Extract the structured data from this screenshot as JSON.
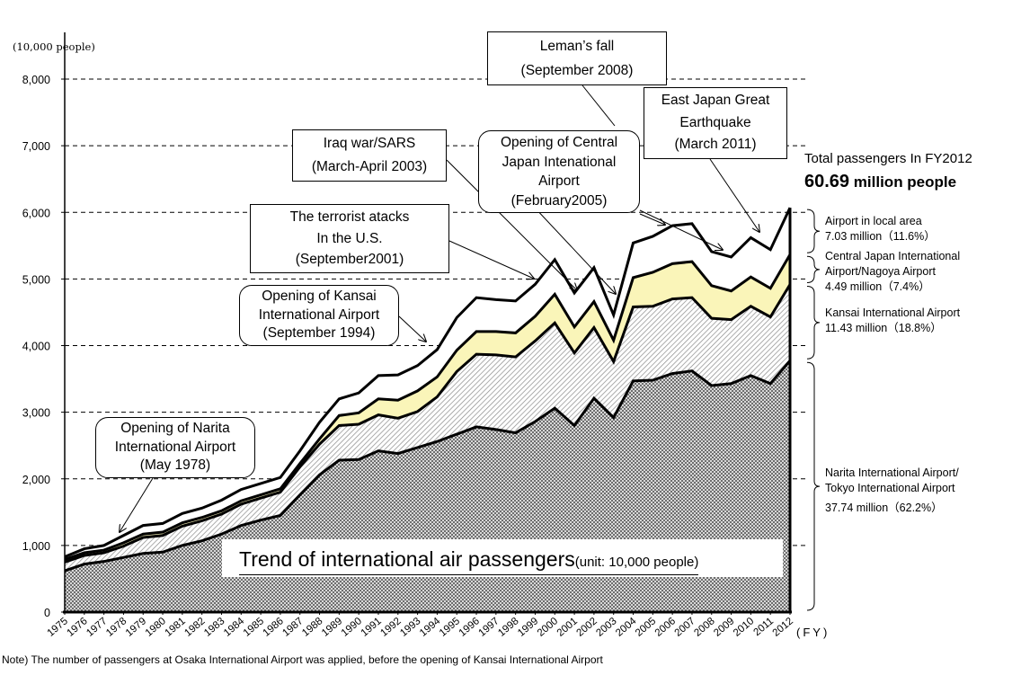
{
  "chart_data": {
    "type": "area",
    "stacked": true,
    "title": "Trend of international air passengers",
    "title_unit": "(unit: 10,000 people)",
    "ylabel": "(10,000 people)",
    "xlabel": "(FY)",
    "ylim": [
      0,
      8000
    ],
    "yticks": [
      0,
      1000,
      2000,
      3000,
      4000,
      5000,
      6000,
      7000,
      8000
    ],
    "ytick_labels": [
      "0",
      "1,000",
      "2,000",
      "3,000",
      "4,000",
      "5,000",
      "6,000",
      "7,000",
      "8,000"
    ],
    "grid": "dashed horizontal",
    "x": [
      "1975",
      "1976",
      "1977",
      "1978",
      "1979",
      "1980",
      "1981",
      "1982",
      "1983",
      "1984",
      "1985",
      "1986",
      "1987",
      "1988",
      "1989",
      "1990",
      "1991",
      "1992",
      "1993",
      "1994",
      "1995",
      "1996",
      "1997",
      "1998",
      "1999",
      "2000",
      "2001",
      "2002",
      "2003",
      "2004",
      "2005",
      "2006",
      "2007",
      "2008",
      "2009",
      "2010",
      "2011",
      "2012"
    ],
    "series": [
      {
        "name": "Narita International Airport/Tokyo International Airport",
        "fill": "checker-gray",
        "values": [
          620,
          720,
          760,
          820,
          880,
          900,
          1000,
          1070,
          1170,
          1300,
          1380,
          1450,
          1760,
          2060,
          2280,
          2290,
          2420,
          2380,
          2470,
          2560,
          2670,
          2780,
          2740,
          2690,
          2860,
          3060,
          2800,
          3210,
          2920,
          3470,
          3480,
          3580,
          3620,
          3400,
          3430,
          3550,
          3430,
          3774
        ]
      },
      {
        "name": "Kansai International Airport",
        "fill": "diagonal-hatch",
        "values": [
          130,
          130,
          130,
          170,
          240,
          250,
          290,
          300,
          300,
          320,
          330,
          350,
          420,
          460,
          520,
          530,
          540,
          530,
          540,
          670,
          940,
          1090,
          1120,
          1140,
          1210,
          1280,
          1090,
          1060,
          840,
          1110,
          1110,
          1120,
          1100,
          1010,
          960,
          1040,
          1000,
          1143
        ]
      },
      {
        "name": "Central Japan International Airport/Nagoya Airport",
        "fill": "#FAF5B9",
        "values": [
          40,
          40,
          40,
          50,
          50,
          50,
          50,
          50,
          50,
          50,
          50,
          50,
          50,
          80,
          150,
          170,
          240,
          270,
          310,
          300,
          320,
          340,
          350,
          360,
          370,
          430,
          390,
          390,
          320,
          440,
          510,
          530,
          540,
          490,
          430,
          440,
          430,
          449
        ]
      },
      {
        "name": "Airport in local area",
        "fill": "#FFFFFF",
        "values": [
          40,
          60,
          70,
          110,
          130,
          130,
          140,
          140,
          160,
          170,
          170,
          170,
          190,
          250,
          250,
          300,
          350,
          380,
          380,
          410,
          490,
          510,
          480,
          480,
          480,
          520,
          510,
          510,
          380,
          520,
          540,
          570,
          570,
          510,
          510,
          590,
          580,
          703
        ]
      }
    ],
    "annotations": [
      {
        "lines": [
          "Opening of Narita",
          "International Airport",
          "(May 1978)"
        ],
        "style": "rounded",
        "year": "1978"
      },
      {
        "lines": [
          "Opening of Kansai",
          "International Airport",
          "(September 1994)"
        ],
        "style": "rounded",
        "year": "1994"
      },
      {
        "lines": [
          "The terrorist atacks",
          "In the U.S.",
          "(September2001)"
        ],
        "style": "box",
        "year": "2001"
      },
      {
        "lines": [
          "Iraq war/SARS",
          "(March-April 2003)"
        ],
        "style": "box",
        "year": "2003"
      },
      {
        "lines": [
          "Opening of Central",
          "Japan Intenational",
          "Airport",
          "(February2005)"
        ],
        "style": "rounded",
        "year": "2005"
      },
      {
        "lines": [
          "Leman’s fall",
          "(September 2008)"
        ],
        "style": "box",
        "year": "2008"
      },
      {
        "lines": [
          "East Japan Great",
          "Earthquake",
          "(March 2011)"
        ],
        "style": "box",
        "year": "2011"
      }
    ],
    "summary": {
      "heading": "Total passengers In FY2012",
      "total_value": "60.69",
      "total_unit": "million people",
      "breakdown": [
        {
          "lines": [
            "Airport in local area",
            "7.03 million（11.6%）"
          ]
        },
        {
          "lines": [
            "Central Japan International",
            "Airport/Nagoya Airport",
            " 4.49 million（7.4%）"
          ]
        },
        {
          "lines": [
            "Kansai International Airport",
            "11.43 million（18.8%）"
          ]
        },
        {
          "lines": [
            "Narita International Airport/",
            "Tokyo International Airport",
            " 37.74 million（62.2%）"
          ]
        }
      ]
    },
    "note": "Note) The number of passengers at Osaka International Airport was applied, before the opening of Kansai International Airport"
  }
}
